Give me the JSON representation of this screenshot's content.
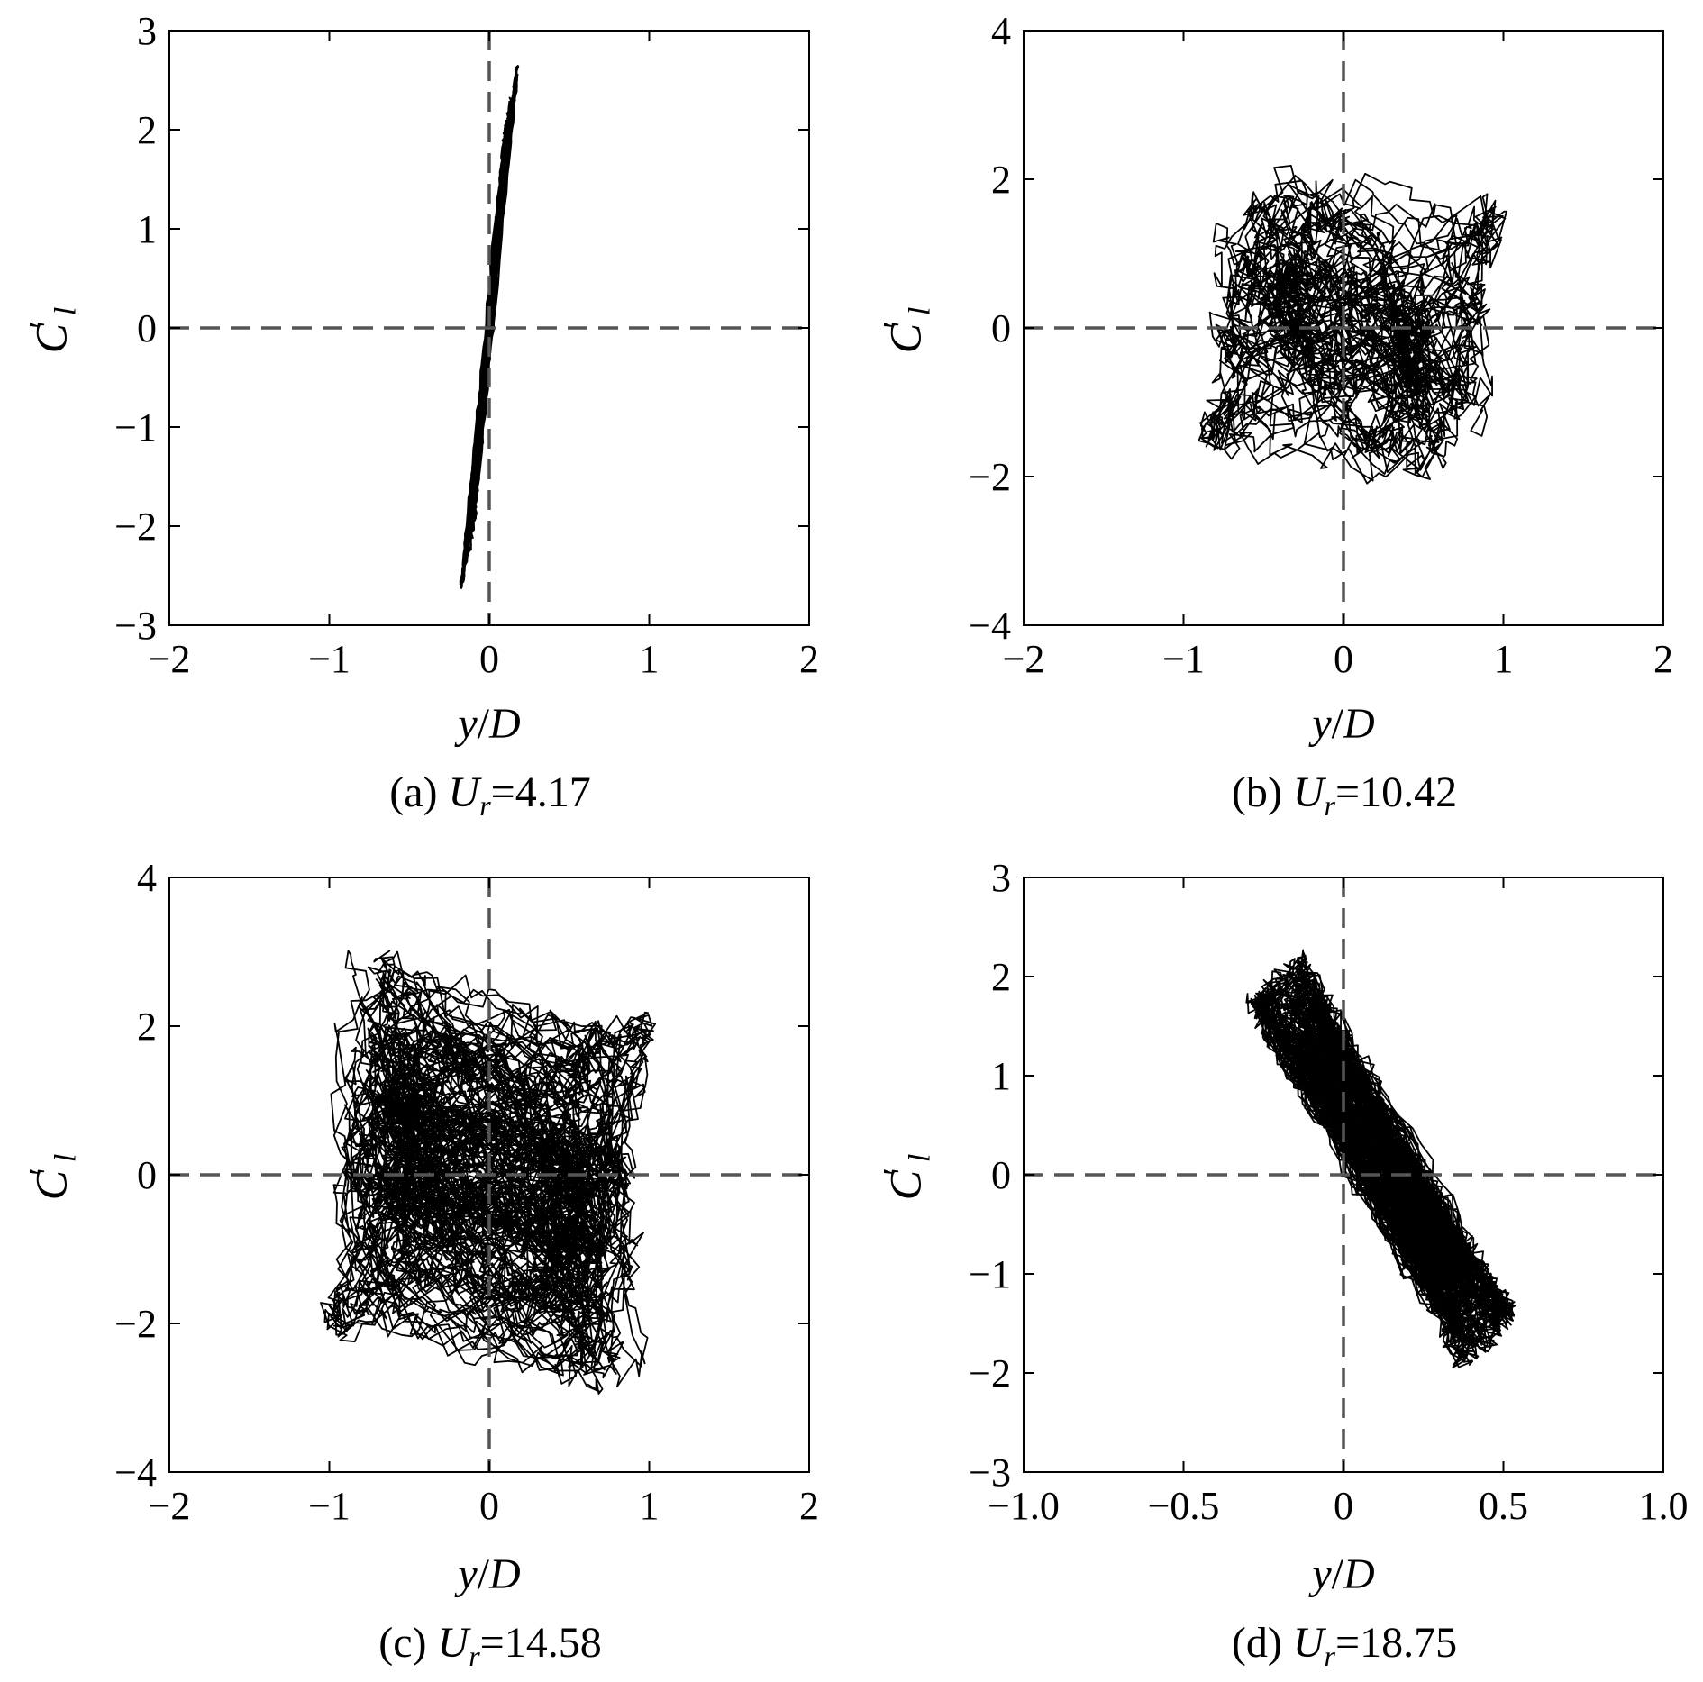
{
  "chart_data": [
    {
      "type": "line",
      "panel": "a",
      "caption_prefix": "(a)",
      "caption_var": "U",
      "caption_sub": "r",
      "caption_value": "=4.17",
      "xlabel_var1": "y",
      "xlabel_sep": "/",
      "xlabel_var2": "D",
      "ylabel_var": "C",
      "ylabel_sub": "l",
      "ylabel_prime": "′",
      "xlim": [
        -2,
        2
      ],
      "ylim": [
        -3,
        3
      ],
      "xticks": [
        -2,
        -1,
        0,
        1,
        2
      ],
      "xtick_labels": [
        "−2",
        "−1",
        "0",
        "1",
        "2"
      ],
      "yticks": [
        -3,
        -2,
        -1,
        0,
        1,
        2,
        3
      ],
      "ytick_labels": [
        "−3",
        "−2",
        "−1",
        "0",
        "1",
        "2",
        "3"
      ],
      "grid": false,
      "reference_lines": {
        "x": 0,
        "y": 0,
        "style": "dashed"
      },
      "orbit": {
        "pattern": "narrow-ellipse",
        "cycles": 30,
        "x_amp": 0.15,
        "y_amp": 2.75,
        "slope": 17.5,
        "width": 0.05,
        "noise": 0.02,
        "x_center": 0.0,
        "y_center": 0.0
      }
    },
    {
      "type": "line",
      "panel": "b",
      "caption_prefix": "(b)",
      "caption_var": "U",
      "caption_sub": "r",
      "caption_value": "=10.42",
      "xlabel_var1": "y",
      "xlabel_sep": "/",
      "xlabel_var2": "D",
      "ylabel_var": "C",
      "ylabel_sub": "l",
      "ylabel_prime": "′",
      "xlim": [
        -2,
        2
      ],
      "ylim": [
        -4,
        4
      ],
      "xticks": [
        -2,
        -1,
        0,
        1,
        2
      ],
      "xtick_labels": [
        "−2",
        "−1",
        "0",
        "1",
        "2"
      ],
      "yticks": [
        -4,
        -2,
        0,
        2,
        4
      ],
      "ytick_labels": [
        "−4",
        "−2",
        "0",
        "2",
        "4"
      ],
      "grid": false,
      "reference_lines": {
        "x": 0,
        "y": 0,
        "style": "dashed"
      },
      "orbit": {
        "pattern": "chaotic",
        "cycles": 45,
        "x_amp": 0.95,
        "y_amp": 3.3,
        "slope": -0.5,
        "width": 1.4,
        "noise": 0.15,
        "x_center": 0.05,
        "y_center": 0.0
      }
    },
    {
      "type": "line",
      "panel": "c",
      "caption_prefix": "(c)",
      "caption_var": "U",
      "caption_sub": "r",
      "caption_value": "=14.58",
      "xlabel_var1": "y",
      "xlabel_sep": "/",
      "xlabel_var2": "D",
      "ylabel_var": "C",
      "ylabel_sub": "l",
      "ylabel_prime": "′",
      "xlim": [
        -2,
        2
      ],
      "ylim": [
        -4,
        4
      ],
      "xticks": [
        -2,
        -1,
        0,
        1,
        2
      ],
      "xtick_labels": [
        "−2",
        "−1",
        "0",
        "1",
        "2"
      ],
      "yticks": [
        -4,
        -2,
        0,
        2,
        4
      ],
      "ytick_labels": [
        "−4",
        "−2",
        "0",
        "2",
        "4"
      ],
      "grid": false,
      "reference_lines": {
        "x": 0,
        "y": 0,
        "style": "dashed"
      },
      "orbit": {
        "pattern": "dense-chaotic",
        "cycles": 110,
        "x_amp": 1.1,
        "y_amp": 3.3,
        "slope": -0.6,
        "width": 1.5,
        "noise": 0.12,
        "x_center": 0.0,
        "y_center": 0.0
      }
    },
    {
      "type": "line",
      "panel": "d",
      "caption_prefix": "(d)",
      "caption_var": "U",
      "caption_sub": "r",
      "caption_value": "=18.75",
      "xlabel_var1": "y",
      "xlabel_sep": "/",
      "xlabel_var2": "D",
      "ylabel_var": "C",
      "ylabel_sub": "l",
      "ylabel_prime": "′",
      "xlim": [
        -1.0,
        1.0
      ],
      "ylim": [
        -3,
        3
      ],
      "xticks": [
        -1.0,
        -0.5,
        0,
        0.5,
        1.0
      ],
      "xtick_labels": [
        "−1.0",
        "−0.5",
        "0",
        "0.5",
        "1.0"
      ],
      "yticks": [
        -3,
        -2,
        -1,
        0,
        1,
        2,
        3
      ],
      "ytick_labels": [
        "−3",
        "−2",
        "−1",
        "0",
        "1",
        "2",
        "3"
      ],
      "grid": false,
      "reference_lines": {
        "x": 0,
        "y": 0,
        "style": "dashed"
      },
      "orbit": {
        "pattern": "thick-band",
        "cycles": 120,
        "x_amp": 0.35,
        "y_amp": 2.0,
        "slope": -5.5,
        "width": 0.28,
        "noise": 0.06,
        "x_center": 0.12,
        "y_center": 0.15
      }
    }
  ]
}
